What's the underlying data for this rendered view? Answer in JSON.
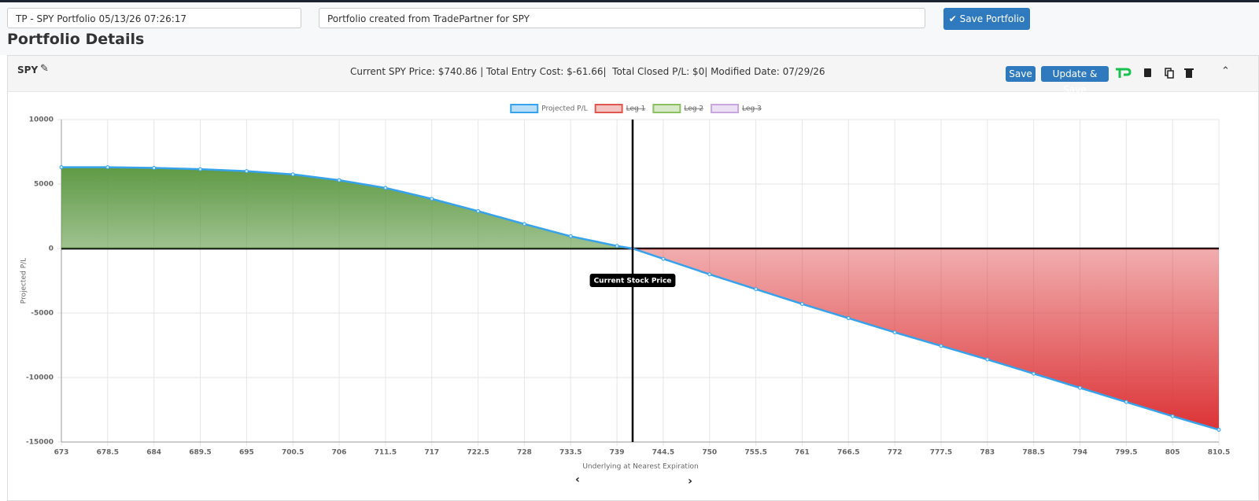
{
  "header": {
    "portfolio_name": "TP - SPY Portfolio 05/13/26 07:26:17",
    "description": "Portfolio created from TradePartner for SPY",
    "save_button": "Save Portfolio",
    "title": "Portfolio Details"
  },
  "panel": {
    "symbol": "SPY",
    "summary": "Current SPY Price: $740.86 | Total Entry Cost: $-61.66|  Total Closed P/L: $0| Modified Date: 07/29/26",
    "buttons": [
      "Save",
      "Update & Save"
    ]
  },
  "chart_data": {
    "type": "line",
    "xlabel": "Underlying at Nearest Expiration",
    "ylabel": "Projected P/L",
    "x": [
      673,
      678.5,
      684,
      689.5,
      695,
      700.5,
      706,
      711.5,
      717,
      722.5,
      728,
      733.5,
      739,
      740.86,
      744.5,
      750,
      755.5,
      761,
      766.5,
      772,
      777.5,
      783,
      788.5,
      794,
      799.5,
      805,
      810.5
    ],
    "series": [
      {
        "name": "Projected P/L",
        "color": "#36a2eb",
        "values": [
          6300,
          6300,
          6250,
          6150,
          6000,
          5750,
          5300,
          4700,
          3850,
          2900,
          1900,
          950,
          200,
          0,
          -800,
          -2000,
          -3150,
          -4300,
          -5400,
          -6500,
          -7550,
          -8600,
          -9700,
          -10800,
          -11900,
          -13000,
          -14050
        ]
      }
    ],
    "legend_items": [
      {
        "name": "Leg 1",
        "color": "#e0574f",
        "hidden": true
      },
      {
        "name": "Leg 2",
        "color": "#8cc161",
        "hidden": true
      },
      {
        "name": "Leg 3",
        "color": "#c9a6e0",
        "hidden": true
      }
    ],
    "positive_fill": "#5f9a45",
    "negative_fill": "#dc3336",
    "annotations": [
      {
        "text": "Current Stock Price",
        "x": 740.86
      }
    ],
    "xlim": [
      673,
      810.5
    ],
    "ylim": [
      -15000,
      10000
    ],
    "xticks": [
      673,
      678.5,
      684,
      689.5,
      695,
      700.5,
      706,
      711.5,
      717,
      722.5,
      728,
      733.5,
      739,
      744.5,
      750,
      755.5,
      761,
      766.5,
      772,
      777.5,
      783,
      788.5,
      794,
      799.5,
      805,
      810.5
    ],
    "yticks": [
      -15000,
      -10000,
      -5000,
      0,
      5000,
      10000
    ],
    "grid": true
  }
}
